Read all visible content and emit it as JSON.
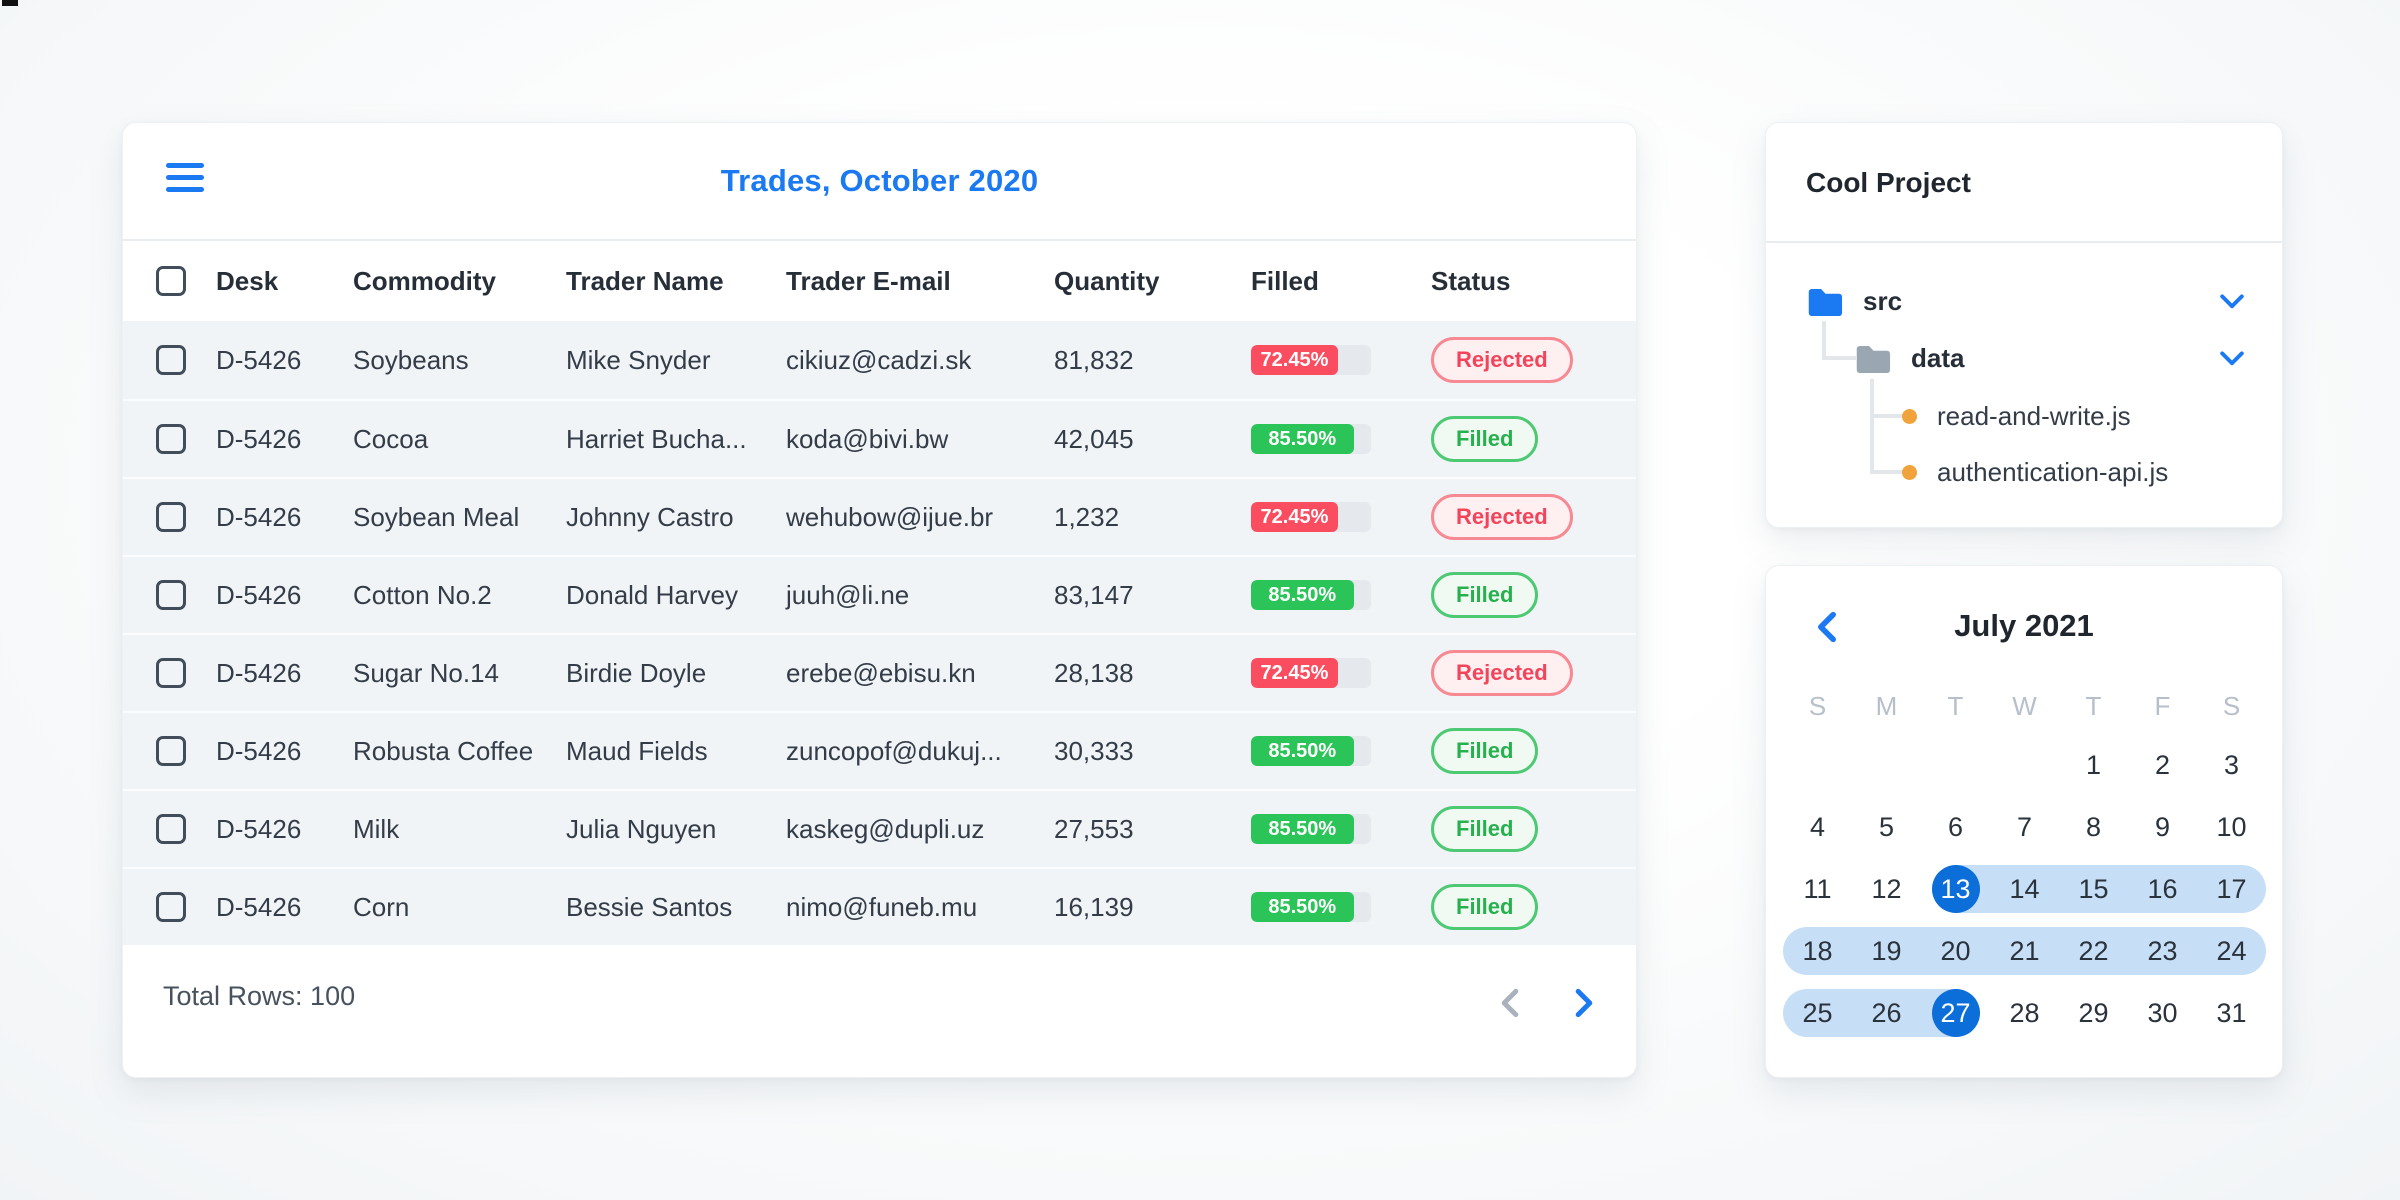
{
  "artifact_note": "small dark mark at top-left corner of screen",
  "colors": {
    "accent_blue": "#1b79f2",
    "selected_day_blue": "#0c6ed8",
    "range_band_blue": "#c6def6",
    "progress_red": "#fb4d60",
    "progress_green": "#2bc458",
    "status_rejected_text": "#f2455b",
    "status_filled_text": "#27b14e",
    "row_background": "#f1f4f7",
    "folder_gray": "#9aa6b2",
    "file_dot_orange": "#f0a33a"
  },
  "trades_panel": {
    "title": "Trades, October 2020",
    "menu_icon": "hamburger-icon",
    "columns": [
      "Desk",
      "Commodity",
      "Trader Name",
      "Trader E-mail",
      "Quantity",
      "Filled",
      "Status"
    ],
    "rows": [
      {
        "desk": "D-5426",
        "commodity": "Soybeans",
        "trader": "Mike Snyder",
        "email": "cikiuz@cadzi.sk",
        "quantity": "81,832",
        "filled_pct": "72.45%",
        "filled_value": 72.45,
        "status": "Rejected",
        "tone": "red"
      },
      {
        "desk": "D-5426",
        "commodity": "Cocoa",
        "trader": "Harriet Bucha...",
        "email": "koda@bivi.bw",
        "quantity": "42,045",
        "filled_pct": "85.50%",
        "filled_value": 85.5,
        "status": "Filled",
        "tone": "green"
      },
      {
        "desk": "D-5426",
        "commodity": "Soybean Meal",
        "trader": "Johnny Castro",
        "email": "wehubow@ijue.br",
        "quantity": "1,232",
        "filled_pct": "72.45%",
        "filled_value": 72.45,
        "status": "Rejected",
        "tone": "red"
      },
      {
        "desk": "D-5426",
        "commodity": "Cotton No.2",
        "trader": "Donald Harvey",
        "email": "juuh@li.ne",
        "quantity": "83,147",
        "filled_pct": "85.50%",
        "filled_value": 85.5,
        "status": "Filled",
        "tone": "green"
      },
      {
        "desk": "D-5426",
        "commodity": "Sugar No.14",
        "trader": "Birdie Doyle",
        "email": "erebe@ebisu.kn",
        "quantity": "28,138",
        "filled_pct": "72.45%",
        "filled_value": 72.45,
        "status": "Rejected",
        "tone": "red"
      },
      {
        "desk": "D-5426",
        "commodity": "Robusta Coffee",
        "trader": "Maud Fields",
        "email": "zuncopof@dukuj...",
        "quantity": "30,333",
        "filled_pct": "85.50%",
        "filled_value": 85.5,
        "status": "Filled",
        "tone": "green"
      },
      {
        "desk": "D-5426",
        "commodity": "Milk",
        "trader": "Julia Nguyen",
        "email": "kaskeg@dupli.uz",
        "quantity": "27,553",
        "filled_pct": "85.50%",
        "filled_value": 85.5,
        "status": "Filled",
        "tone": "green"
      },
      {
        "desk": "D-5426",
        "commodity": "Corn",
        "trader": "Bessie Santos",
        "email": "nimo@funeb.mu",
        "quantity": "16,139",
        "filled_pct": "85.50%",
        "filled_value": 85.5,
        "status": "Filled",
        "tone": "green"
      }
    ],
    "footer": {
      "total_rows_label": "Total Rows: 100",
      "prev_icon": "chevron-left-icon",
      "next_icon": "chevron-right-icon"
    }
  },
  "file_tree_panel": {
    "title": "Cool Project",
    "items": [
      {
        "label": "src",
        "type": "folder",
        "color": "blue",
        "expanded": true
      },
      {
        "label": "data",
        "type": "folder",
        "color": "gray",
        "expanded": true
      },
      {
        "label": "read-and-write.js",
        "type": "file"
      },
      {
        "label": "authentication-api.js",
        "type": "file"
      }
    ]
  },
  "calendar_panel": {
    "title": "July 2021",
    "nav": {
      "prev_icon": "chevron-left-icon"
    },
    "weekdays": [
      "S",
      "M",
      "T",
      "W",
      "T",
      "F",
      "S"
    ],
    "weeks": [
      [
        null,
        null,
        null,
        null,
        1,
        2,
        3
      ],
      [
        4,
        5,
        6,
        7,
        8,
        9,
        10
      ],
      [
        11,
        12,
        13,
        14,
        15,
        16,
        17
      ],
      [
        18,
        19,
        20,
        21,
        22,
        23,
        24
      ],
      [
        25,
        26,
        27,
        28,
        29,
        30,
        31
      ]
    ],
    "selected_range": {
      "start": 13,
      "end": 27
    }
  }
}
